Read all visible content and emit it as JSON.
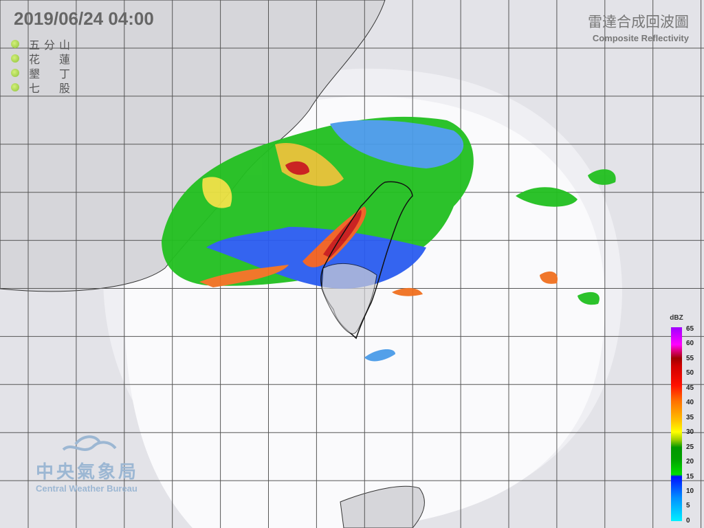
{
  "header": {
    "datetime": "2019/06/24  04:00"
  },
  "stations": [
    {
      "name": [
        "五",
        "分",
        "山"
      ],
      "status_color": "#9ccc44"
    },
    {
      "name": [
        "花",
        "",
        "蓮"
      ],
      "status_color": "#9ccc44"
    },
    {
      "name": [
        "墾",
        "",
        "丁"
      ],
      "status_color": "#9ccc44"
    },
    {
      "name": [
        "七",
        "",
        "股"
      ],
      "status_color": "#9ccc44"
    }
  ],
  "product": {
    "title_zh": "雷達合成回波圖",
    "title_en": "Composite Reflectivity"
  },
  "agency": {
    "name_zh": "中央氣象局",
    "name_en": "Central Weather Bureau",
    "logo_icon": "cloud-wave-icon"
  },
  "legend": {
    "unit": "dBZ",
    "ticks": [
      "65",
      "60",
      "55",
      "50",
      "45",
      "40",
      "35",
      "30",
      "25",
      "20",
      "15",
      "10",
      "5",
      "0"
    ]
  },
  "colors": {
    "background": "#e3e3e8",
    "coverage": "#f6f6f8",
    "land": "#d8d8dc",
    "grid": "#555555"
  }
}
